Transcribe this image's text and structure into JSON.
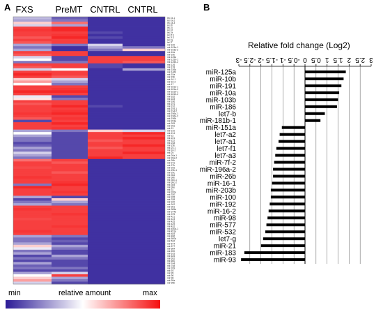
{
  "panels": {
    "a": "A",
    "b": "B"
  },
  "heatmap": {
    "columns": [
      "FXS",
      "PreMT",
      "CNTRL",
      "CNTRL"
    ],
    "legend": {
      "min": "min",
      "label": "relative amount",
      "max": "max"
    },
    "row_labels": [
      "let-7a-1",
      "let-7a-2",
      "let-7a-3",
      "let-7b",
      "let-7c",
      "let-7d",
      "let-7e",
      "let-7f-1",
      "let-7f-2",
      "let-7g",
      "let-7i",
      "mir-100",
      "mir-103a-1",
      "mir-103a-2",
      "mir-10a",
      "mir-10b",
      "mir-125a",
      "mir-125b-1",
      "mir-125b-2",
      "mir-126",
      "mir-128",
      "mir-146a",
      "mir-146b",
      "mir-15a",
      "mir-15b",
      "mir-16-1",
      "mir-16-2",
      "mir-17",
      "mir-181a-1",
      "mir-181a-2",
      "mir-181b-1",
      "mir-181b-2",
      "mir-182",
      "mir-183",
      "mir-186",
      "mir-191",
      "mir-192",
      "mir-194-1",
      "mir-194-2",
      "mir-196a-1",
      "mir-196a-2",
      "mir-196b",
      "mir-203a",
      "mir-205",
      "mir-20a",
      "mir-21",
      "mir-210",
      "mir-214",
      "mir-22",
      "mir-221",
      "mir-222",
      "mir-23a",
      "mir-23b",
      "mir-24-1",
      "mir-24-2",
      "mir-25",
      "mir-26a-1",
      "mir-26a-2",
      "mir-26b",
      "mir-27a",
      "mir-27b",
      "mir-29a",
      "mir-29b-1",
      "mir-29c",
      "mir-30a",
      "mir-30b",
      "mir-30c-1",
      "mir-30c-2",
      "mir-30d",
      "mir-30e",
      "mir-31",
      "mir-320a",
      "mir-330",
      "mir-335",
      "mir-338",
      "mir-340",
      "mir-342",
      "mir-361",
      "mir-365a",
      "mir-374a",
      "mir-375",
      "mir-421",
      "mir-423",
      "mir-425",
      "mir-429",
      "mir-432",
      "mir-450a-1",
      "mir-451a",
      "mir-484",
      "mir-486",
      "mir-500a",
      "mir-532",
      "mir-574",
      "mir-577",
      "mir-584",
      "mir-590",
      "mir-615",
      "mir-625",
      "mir-652",
      "mir-660",
      "mir-744",
      "mir-758",
      "mir-769",
      "mir-93",
      "mir-95",
      "mir-96",
      "mir-98",
      "mir-99a",
      "mir-99b"
    ],
    "matrix": [
      [
        0.35,
        0.15,
        0.05,
        0.05
      ],
      [
        0.3,
        0.2,
        0.05,
        0.05
      ],
      [
        0.6,
        0.8,
        0.05,
        0.05
      ],
      [
        0.4,
        0.3,
        0.05,
        0.05
      ],
      [
        0.9,
        0.95,
        0.05,
        0.05
      ],
      [
        0.92,
        0.95,
        0.05,
        0.05
      ],
      [
        0.9,
        0.9,
        0.1,
        0.05
      ],
      [
        0.9,
        0.92,
        0.05,
        0.05
      ],
      [
        0.85,
        0.95,
        0.1,
        0.05
      ],
      [
        0.9,
        0.9,
        0.05,
        0.05
      ],
      [
        0.85,
        0.9,
        0.05,
        0.05
      ],
      [
        0.3,
        0.2,
        0.4,
        0.05
      ],
      [
        0.2,
        0.05,
        0.3,
        0.2
      ],
      [
        0.3,
        0.05,
        0.2,
        0.6
      ],
      [
        0.9,
        0.9,
        0.05,
        0.05
      ],
      [
        0.85,
        0.9,
        0.05,
        0.05
      ],
      [
        0.4,
        0.1,
        0.9,
        0.9
      ],
      [
        0.5,
        0.1,
        0.9,
        0.9
      ],
      [
        0.2,
        0.2,
        0.9,
        0.85
      ],
      [
        0.9,
        0.9,
        0.1,
        0.05
      ],
      [
        0.85,
        0.9,
        0.1,
        0.05
      ],
      [
        0.4,
        0.5,
        0.05,
        0.3
      ],
      [
        0.9,
        0.9,
        0.05,
        0.05
      ],
      [
        0.95,
        0.9,
        0.05,
        0.05
      ],
      [
        0.9,
        0.85,
        0.05,
        0.05
      ],
      [
        0.6,
        0.4,
        0.05,
        0.05
      ],
      [
        0.7,
        0.3,
        0.05,
        0.05
      ],
      [
        0.5,
        0.2,
        0.05,
        0.05
      ],
      [
        0.9,
        0.9,
        0.05,
        0.05
      ],
      [
        0.9,
        0.92,
        0.05,
        0.05
      ],
      [
        0.95,
        0.95,
        0.05,
        0.05
      ],
      [
        0.9,
        0.9,
        0.05,
        0.05
      ],
      [
        0.45,
        0.1,
        0.05,
        0.05
      ],
      [
        0.55,
        0.2,
        0.05,
        0.05
      ],
      [
        0.9,
        0.9,
        0.05,
        0.05
      ],
      [
        0.85,
        0.9,
        0.05,
        0.05
      ],
      [
        0.9,
        0.95,
        0.1,
        0.05
      ],
      [
        0.9,
        0.9,
        0.05,
        0.05
      ],
      [
        0.9,
        0.92,
        0.05,
        0.05
      ],
      [
        0.92,
        0.95,
        0.05,
        0.05
      ],
      [
        0.9,
        0.9,
        0.05,
        0.05
      ],
      [
        0.85,
        0.92,
        0.05,
        0.05
      ],
      [
        0.1,
        0.9,
        0.05,
        0.05
      ],
      [
        0.9,
        0.95,
        0.05,
        0.05
      ],
      [
        0.9,
        0.9,
        0.05,
        0.05
      ],
      [
        0.9,
        0.92,
        0.05,
        0.05
      ],
      [
        0.3,
        0.2,
        0.6,
        0.4
      ],
      [
        0.5,
        0.1,
        0.9,
        0.95
      ],
      [
        0.3,
        0.1,
        0.9,
        0.9
      ],
      [
        0.2,
        0.1,
        0.9,
        0.95
      ],
      [
        0.2,
        0.1,
        0.85,
        0.9
      ],
      [
        0.1,
        0.1,
        0.9,
        0.9
      ],
      [
        0.15,
        0.1,
        0.9,
        0.95
      ],
      [
        0.3,
        0.1,
        0.85,
        0.9
      ],
      [
        0.2,
        0.1,
        0.9,
        0.9
      ],
      [
        0.4,
        0.1,
        0.9,
        0.95
      ],
      [
        0.3,
        0.1,
        0.9,
        0.9
      ],
      [
        0.2,
        0.1,
        0.95,
        0.9
      ],
      [
        0.8,
        0.9,
        0.05,
        0.05
      ],
      [
        0.9,
        0.85,
        0.05,
        0.05
      ],
      [
        0.9,
        0.9,
        0.05,
        0.05
      ],
      [
        0.88,
        0.9,
        0.05,
        0.05
      ],
      [
        0.9,
        0.9,
        0.05,
        0.05
      ],
      [
        0.9,
        0.85,
        0.05,
        0.05
      ],
      [
        0.9,
        0.9,
        0.05,
        0.05
      ],
      [
        0.92,
        0.9,
        0.05,
        0.05
      ],
      [
        0.9,
        0.9,
        0.05,
        0.05
      ],
      [
        0.9,
        0.92,
        0.05,
        0.05
      ],
      [
        0.2,
        0.95,
        0.05,
        0.05
      ],
      [
        0.95,
        0.9,
        0.05,
        0.05
      ],
      [
        0.9,
        0.9,
        0.05,
        0.05
      ],
      [
        0.9,
        0.92,
        0.05,
        0.05
      ],
      [
        0.9,
        0.9,
        0.05,
        0.05
      ],
      [
        0.3,
        0.1,
        0.05,
        0.05
      ],
      [
        0.1,
        0.6,
        0.05,
        0.05
      ],
      [
        0.2,
        0.3,
        0.05,
        0.05
      ],
      [
        0.3,
        0.2,
        0.05,
        0.05
      ],
      [
        0.9,
        0.9,
        0.05,
        0.05
      ],
      [
        0.92,
        0.9,
        0.05,
        0.05
      ],
      [
        0.9,
        0.9,
        0.05,
        0.05
      ],
      [
        0.9,
        0.92,
        0.05,
        0.05
      ],
      [
        0.9,
        0.9,
        0.05,
        0.05
      ],
      [
        0.88,
        0.9,
        0.05,
        0.05
      ],
      [
        0.9,
        0.9,
        0.05,
        0.05
      ],
      [
        0.9,
        0.9,
        0.05,
        0.05
      ],
      [
        0.9,
        0.92,
        0.05,
        0.05
      ],
      [
        0.9,
        0.9,
        0.05,
        0.05
      ],
      [
        0.92,
        0.9,
        0.05,
        0.05
      ],
      [
        0.9,
        0.9,
        0.05,
        0.05
      ],
      [
        0.3,
        0.2,
        0.05,
        0.05
      ],
      [
        0.2,
        0.1,
        0.05,
        0.05
      ],
      [
        0.2,
        0.15,
        0.05,
        0.05
      ],
      [
        0.3,
        0.1,
        0.05,
        0.05
      ],
      [
        0.6,
        0.3,
        0.05,
        0.05
      ],
      [
        0.45,
        0.2,
        0.05,
        0.05
      ],
      [
        0.2,
        0.1,
        0.05,
        0.05
      ],
      [
        0.3,
        0.1,
        0.05,
        0.05
      ],
      [
        0.1,
        0.3,
        0.05,
        0.05
      ],
      [
        0.2,
        0.2,
        0.05,
        0.05
      ],
      [
        0.1,
        0.1,
        0.05,
        0.05
      ],
      [
        0.3,
        0.1,
        0.05,
        0.05
      ],
      [
        0.15,
        0.1,
        0.05,
        0.05
      ],
      [
        0.2,
        0.2,
        0.05,
        0.05
      ],
      [
        0.1,
        0.1,
        0.05,
        0.05
      ],
      [
        0.3,
        0.4,
        0.05,
        0.05
      ],
      [
        0.5,
        0.9,
        0.05,
        0.05
      ],
      [
        0.6,
        0.3,
        0.05,
        0.05
      ],
      [
        0.7,
        0.2,
        0.05,
        0.05
      ],
      [
        0.4,
        0.1,
        0.05,
        0.05
      ]
    ],
    "colors": {
      "low": "#2b1a96",
      "mid": "#ffffff",
      "high": "#f50f0f"
    }
  },
  "chart_data": {
    "type": "bar",
    "title": "Relative fold change (Log2)",
    "x_ticks": [
      "-3",
      "-2.5",
      "-2",
      "-1.5",
      "-1",
      "-0.5",
      "0",
      "0.5",
      "1",
      "1.5",
      "2",
      "2.5",
      "3"
    ],
    "xlim": [
      -3,
      3
    ],
    "categories": [
      "miR-125a",
      "miR-10b",
      "miR-191",
      "miR-10a",
      "miR-103b",
      "miR-186",
      "let7-b",
      "miR-181b-1",
      "miR-151a",
      "let7-a2",
      "let7-a1",
      "let7-f1",
      "let7-a3",
      "miR-7f-2",
      "miR-196a-2",
      "miR-26b",
      "miR-16-1",
      "miR-203b",
      "miR-100",
      "miR-192",
      "miR-16-2",
      "miR-98",
      "miR-577",
      "miR-532",
      "let7-g",
      "miR-21",
      "miR-183",
      "miR-93"
    ],
    "values": [
      1.85,
      1.75,
      1.65,
      1.55,
      1.5,
      1.45,
      0.9,
      0.7,
      -1.05,
      -1.15,
      -1.2,
      -1.3,
      -1.35,
      -1.4,
      -1.45,
      -1.45,
      -1.5,
      -1.55,
      -1.55,
      -1.6,
      -1.65,
      -1.7,
      -1.75,
      -1.8,
      -1.9,
      -2.0,
      -2.75,
      -2.9
    ],
    "grid": true
  }
}
